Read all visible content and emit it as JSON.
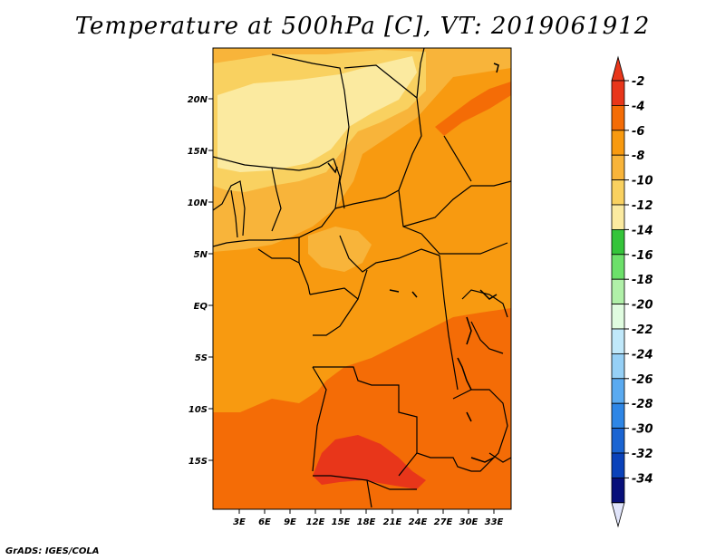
{
  "title": "Temperature at 500hPa [C], VT: 2019061912",
  "credit": "GrADS: IGES/COLA",
  "map": {
    "lat_ticks": [
      "20N",
      "15N",
      "10N",
      "5N",
      "EQ",
      "5S",
      "10S",
      "15S"
    ],
    "lon_ticks": [
      "3E",
      "6E",
      "9E",
      "12E",
      "15E",
      "18E",
      "21E",
      "24E",
      "27E",
      "30E",
      "33E"
    ]
  },
  "colorbar": {
    "labels": [
      "-2",
      "-4",
      "-6",
      "-8",
      "-10",
      "-12",
      "-14",
      "-16",
      "-18",
      "-20",
      "-22",
      "-24",
      "-26",
      "-28",
      "-30",
      "-32",
      "-34"
    ],
    "colors": [
      "#e8361a",
      "#f46c06",
      "#f89a10",
      "#f8b43a",
      "#f9d160",
      "#fbeaa0",
      "#34c43a",
      "#6ce06a",
      "#b0f0a8",
      "#e0fce0",
      "#c0e8fa",
      "#96d0f6",
      "#5aaaf0",
      "#2e86e6",
      "#1a64d2",
      "#0a42ba",
      "#08107a"
    ],
    "top_arrow_color": "#e8361a",
    "bottom_arrow_color": "#e0e4fa"
  }
}
